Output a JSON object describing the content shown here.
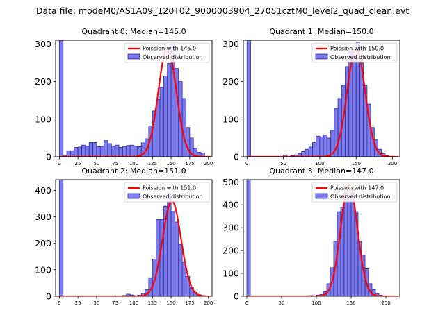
{
  "suptitle": "Data file: modeM0/AS1A09_120T02_9000003904_27051cztM0_level2_quad_clean.evt",
  "colors": {
    "hist_fill": "#7b7bec",
    "hist_edge": "#2a2a9a",
    "poisson": "#ff0000"
  },
  "chart_data": [
    {
      "type": "bar",
      "title": "Quadrant 0: Median=145.0",
      "median": 145.0,
      "bin_width": 5,
      "xlim": [
        -5,
        205
      ],
      "ylim": [
        0,
        310
      ],
      "xticks": [
        0,
        25,
        50,
        75,
        100,
        125,
        150,
        175,
        200
      ],
      "yticks": [
        0,
        100,
        200,
        300
      ],
      "bin_starts": [
        0,
        5,
        10,
        15,
        20,
        25,
        30,
        35,
        40,
        45,
        50,
        55,
        60,
        65,
        70,
        75,
        80,
        85,
        90,
        95,
        100,
        105,
        110,
        115,
        120,
        125,
        130,
        135,
        140,
        145,
        150,
        155,
        160,
        165,
        170,
        175,
        180,
        185,
        190,
        195
      ],
      "counts": [
        310,
        4,
        16,
        16,
        25,
        26,
        31,
        28,
        38,
        38,
        27,
        28,
        43,
        35,
        28,
        31,
        25,
        27,
        30,
        31,
        28,
        27,
        37,
        48,
        82,
        122,
        152,
        185,
        215,
        248,
        300,
        235,
        200,
        155,
        78,
        50,
        22,
        12,
        10,
        1
      ],
      "poisson_peak": 290,
      "legend": [
        "Poission with 145.0",
        "Observed distribution"
      ]
    },
    {
      "type": "bar",
      "title": "Quadrant 1: Median=150.0",
      "median": 150.0,
      "bin_width": 5,
      "xlim": [
        -5,
        210
      ],
      "ylim": [
        0,
        310
      ],
      "xticks": [
        0,
        50,
        100,
        150,
        200
      ],
      "yticks": [
        0,
        100,
        200,
        300
      ],
      "bin_starts": [
        0,
        5,
        10,
        15,
        20,
        25,
        30,
        35,
        40,
        45,
        50,
        55,
        60,
        65,
        70,
        75,
        80,
        85,
        90,
        95,
        100,
        105,
        110,
        115,
        120,
        125,
        130,
        135,
        140,
        145,
        150,
        155,
        160,
        165,
        170,
        175,
        180,
        185,
        190,
        195,
        200
      ],
      "counts": [
        310,
        0,
        0,
        0,
        0,
        0,
        0,
        0,
        0,
        0,
        5,
        1,
        3,
        5,
        9,
        14,
        20,
        26,
        38,
        55,
        53,
        58,
        50,
        70,
        128,
        155,
        190,
        240,
        280,
        270,
        305,
        250,
        190,
        140,
        78,
        45,
        20,
        8,
        3,
        1,
        0
      ],
      "poisson_peak": 290,
      "legend": [
        "Poission with 150.0",
        "Observed distribution"
      ]
    },
    {
      "type": "bar",
      "title": "Quadrant 2: Median=151.0",
      "median": 151.0,
      "bin_width": 5,
      "xlim": [
        -5,
        205
      ],
      "ylim": [
        0,
        440
      ],
      "xticks": [
        0,
        25,
        50,
        75,
        100,
        125,
        150,
        175,
        200
      ],
      "yticks": [
        0,
        100,
        200,
        300,
        400
      ],
      "bin_starts": [
        0,
        5,
        10,
        15,
        20,
        25,
        30,
        35,
        40,
        45,
        50,
        55,
        60,
        65,
        70,
        75,
        80,
        85,
        90,
        95,
        100,
        105,
        110,
        115,
        120,
        125,
        130,
        135,
        140,
        145,
        150,
        155,
        160,
        165,
        170,
        175,
        180,
        185,
        190,
        195,
        200
      ],
      "counts": [
        440,
        0,
        0,
        0,
        0,
        0,
        0,
        0,
        0,
        0,
        0,
        0,
        0,
        0,
        0,
        0,
        1,
        3,
        8,
        5,
        2,
        4,
        10,
        25,
        70,
        140,
        290,
        290,
        340,
        390,
        320,
        280,
        195,
        130,
        75,
        35,
        15,
        6,
        3,
        1,
        0
      ],
      "poisson_peak": 360,
      "legend": [
        "Poission with 151.0",
        "Observed distribution"
      ]
    },
    {
      "type": "bar",
      "title": "Quadrant 3: Median=147.0",
      "median": 147.0,
      "bin_width": 5,
      "xlim": [
        -5,
        220
      ],
      "ylim": [
        0,
        510
      ],
      "xticks": [
        0,
        50,
        100,
        150,
        200
      ],
      "yticks": [
        0,
        100,
        200,
        300,
        400,
        500
      ],
      "bin_starts": [
        0,
        5,
        10,
        15,
        20,
        25,
        30,
        35,
        40,
        45,
        50,
        55,
        60,
        65,
        70,
        75,
        80,
        85,
        90,
        95,
        100,
        105,
        110,
        115,
        120,
        125,
        130,
        135,
        140,
        145,
        150,
        155,
        160,
        165,
        170,
        175,
        180,
        185,
        190,
        195,
        200
      ],
      "counts": [
        510,
        0,
        0,
        0,
        0,
        0,
        0,
        0,
        0,
        0,
        0,
        0,
        0,
        0,
        0,
        0,
        0,
        2,
        3,
        2,
        5,
        8,
        20,
        55,
        125,
        240,
        370,
        390,
        465,
        430,
        470,
        370,
        240,
        180,
        120,
        55,
        30,
        12,
        5,
        2,
        1
      ],
      "poisson_peak": 490,
      "legend": [
        "Poission with 147.0",
        "Observed distribution"
      ]
    }
  ]
}
